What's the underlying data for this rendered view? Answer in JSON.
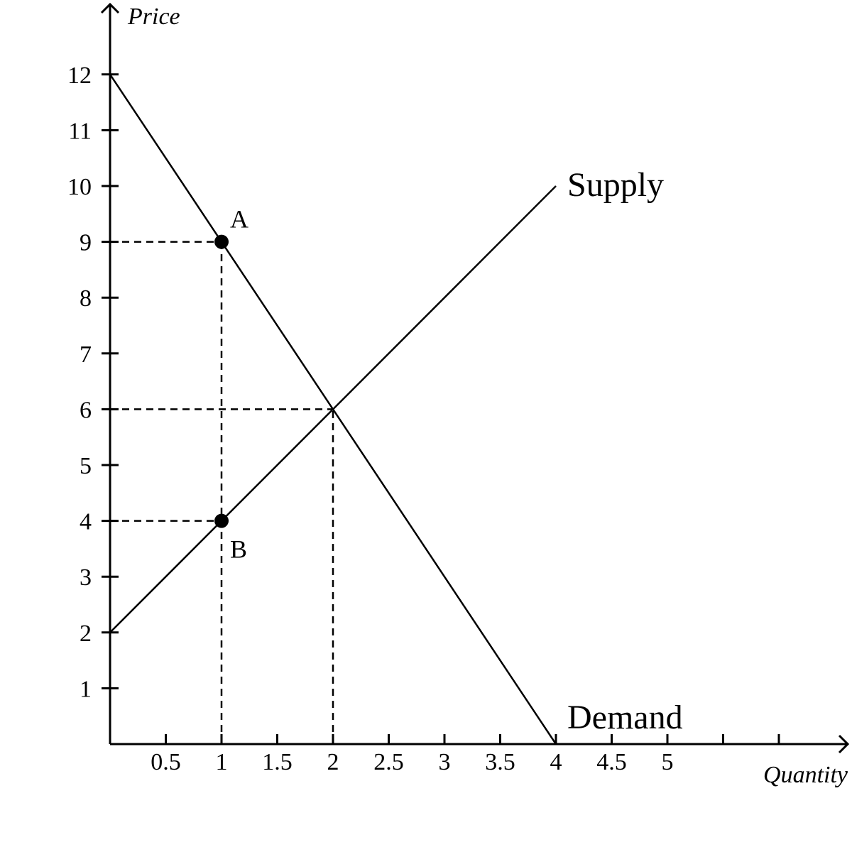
{
  "chart_data": {
    "type": "line",
    "title": "",
    "xlabel": "Quantity",
    "ylabel": "Price",
    "xlim": [
      0,
      6.5
    ],
    "ylim": [
      0,
      12.5
    ],
    "x_ticks": [
      0.5,
      1,
      1.5,
      2,
      2.5,
      3,
      3.5,
      4,
      4.5,
      5,
      5.5,
      6
    ],
    "x_tick_labels": [
      "0.5",
      "1",
      "1.5",
      "2",
      "2.5",
      "3",
      "3.5",
      "4",
      "4.5",
      "5",
      "",
      ""
    ],
    "y_ticks": [
      1,
      2,
      3,
      4,
      5,
      6,
      7,
      8,
      9,
      10,
      11,
      12
    ],
    "y_tick_labels": [
      "1",
      "2",
      "3",
      "4",
      "5",
      "6",
      "7",
      "8",
      "9",
      "10",
      "11",
      "12"
    ],
    "grid": false,
    "legend": "none",
    "series": [
      {
        "name": "Supply",
        "x": [
          0,
          4
        ],
        "y": [
          2,
          10
        ]
      },
      {
        "name": "Demand",
        "x": [
          0,
          4
        ],
        "y": [
          12,
          0
        ]
      }
    ],
    "points": [
      {
        "label": "A",
        "x": 1,
        "y": 9
      },
      {
        "label": "B",
        "x": 1,
        "y": 4
      }
    ],
    "reference_lines": [
      {
        "x": [
          0,
          1
        ],
        "y": [
          9,
          9
        ]
      },
      {
        "x": [
          0,
          1
        ],
        "y": [
          4,
          4
        ]
      },
      {
        "x": [
          0,
          2
        ],
        "y": [
          6,
          6
        ]
      },
      {
        "x": [
          1,
          1
        ],
        "y": [
          0,
          9
        ]
      },
      {
        "x": [
          2,
          2
        ],
        "y": [
          0,
          6
        ]
      }
    ]
  }
}
